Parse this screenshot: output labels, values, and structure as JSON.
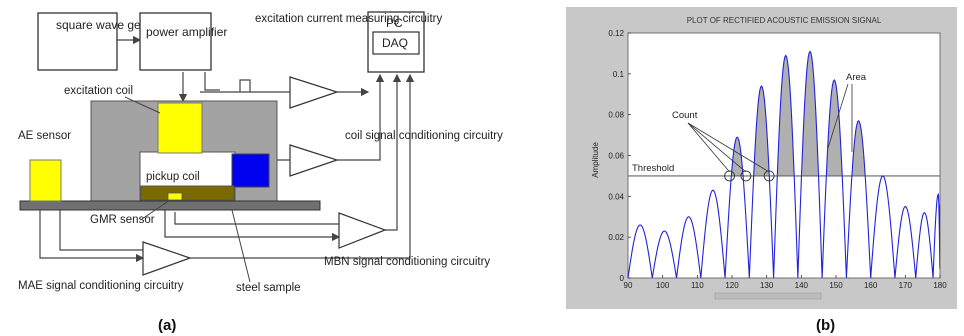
{
  "left_diagram": {
    "caption": "(a)",
    "blocks": {
      "square_wave_generator": "square wave generator",
      "power_amplifier": "power amplifier",
      "pc": "PC",
      "daq": "DAQ"
    },
    "labels": {
      "excitation_current": "excitation current measuring circuitry",
      "excitation_coil": "excitation coil",
      "coil_signal": "coil signal conditioning circuitry",
      "ae_sensor": "AE sensor",
      "pickup_coil": "pickup coil",
      "gmr_sensor": "GMR sensor",
      "mae_signal": "MAE signal conditioning circuitry",
      "steel_sample": "steel sample",
      "mbn_signal": "MBN signal conditioning circuitry"
    },
    "colors": {
      "yellow": "#ffff00",
      "blue": "#0000ee",
      "olive": "#7a6a00",
      "gray": "#a0a0a0",
      "dark_gray": "#707070"
    }
  },
  "right_plot": {
    "caption": "(b)",
    "chart_data": {
      "type": "line",
      "title": "PLOT OF RECTIFIED ACOUSTIC EMISSION SIGNAL",
      "xlabel": "",
      "ylabel": "Amplitude",
      "xlim": [
        90,
        180
      ],
      "ylim": [
        0,
        0.12
      ],
      "xticks": [
        "90",
        "100",
        "110",
        "120",
        "130",
        "140",
        "150",
        "160",
        "170",
        "180"
      ],
      "yticks": [
        "0",
        "0.02",
        "0.04",
        "0.06",
        "0.08",
        "0.1",
        "0.12"
      ],
      "threshold": 0.05,
      "threshold_label": "Threshold",
      "annotations": [
        "Count",
        "Area"
      ],
      "peaks": [
        {
          "x": 90.0,
          "y": 0.0
        },
        {
          "x": 93.5,
          "y": 0.026
        },
        {
          "x": 97.0,
          "y": 0.0
        },
        {
          "x": 100.5,
          "y": 0.023
        },
        {
          "x": 104.0,
          "y": 0.0
        },
        {
          "x": 107.5,
          "y": 0.03
        },
        {
          "x": 111.0,
          "y": 0.0
        },
        {
          "x": 114.5,
          "y": 0.043
        },
        {
          "x": 118.0,
          "y": 0.0
        },
        {
          "x": 121.5,
          "y": 0.069
        },
        {
          "x": 125.0,
          "y": 0.0
        },
        {
          "x": 128.5,
          "y": 0.094
        },
        {
          "x": 132.0,
          "y": 0.0
        },
        {
          "x": 135.5,
          "y": 0.109
        },
        {
          "x": 139.0,
          "y": 0.0
        },
        {
          "x": 142.5,
          "y": 0.111
        },
        {
          "x": 146.0,
          "y": 0.0
        },
        {
          "x": 149.5,
          "y": 0.097
        },
        {
          "x": 153.0,
          "y": 0.0
        },
        {
          "x": 156.5,
          "y": 0.077
        },
        {
          "x": 160.0,
          "y": 0.0
        },
        {
          "x": 163.5,
          "y": 0.05
        },
        {
          "x": 167.0,
          "y": 0.0
        },
        {
          "x": 170.0,
          "y": 0.035
        },
        {
          "x": 173.0,
          "y": 0.0
        },
        {
          "x": 175.5,
          "y": 0.032
        },
        {
          "x": 178.0,
          "y": 0.0
        },
        {
          "x": 179.5,
          "y": 0.041
        },
        {
          "x": 180.0,
          "y": 0.036
        }
      ],
      "count_markers_x": [
        119.3,
        124.0,
        130.7
      ],
      "colors": {
        "line": "#2222dd",
        "fill": "#b0b0b0",
        "threshold": "#666666"
      }
    }
  }
}
